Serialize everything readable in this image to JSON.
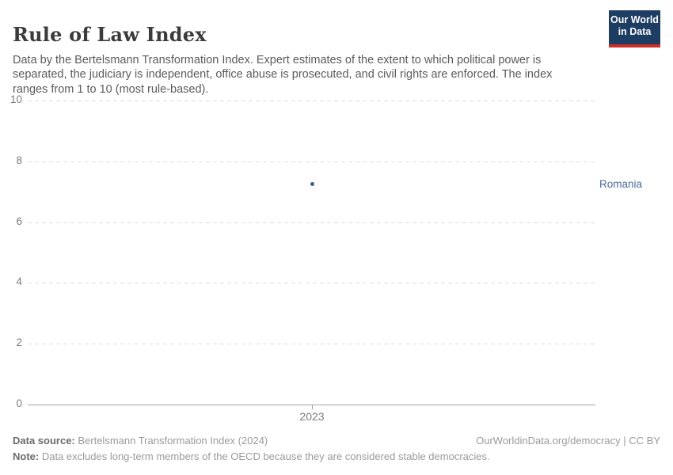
{
  "header": {
    "title": "Rule of Law Index",
    "subtitle": "Data by the Bertelsmann Transformation Index. Expert estimates of the extent to which political power is separated, the judiciary is independent, office abuse is prosecuted, and civil rights are enforced. The index ranges from 1 to 10 (most rule-based).",
    "logo": {
      "line1": "Our World",
      "line2": "in Data",
      "bg_color": "#1d3d63",
      "accent_color": "#cf2e27"
    }
  },
  "chart_data": {
    "type": "scatter",
    "title": "Rule of Law Index",
    "x": [
      2023
    ],
    "xticks": [
      "2023"
    ],
    "series": [
      {
        "name": "Romania",
        "values": [
          7.25
        ],
        "color": "#3d5a8f"
      }
    ],
    "entity_label": "Romania",
    "entity_label_color": "#4c6a9c",
    "ylim": [
      0,
      10
    ],
    "yticks": [
      0,
      2,
      4,
      6,
      8,
      10
    ],
    "xlabel": "",
    "ylabel": "",
    "grid": "horizontal-dashed",
    "legend_position": "right-of-point",
    "gridline_color": "#dcdcdc",
    "zero_line_color": "#a5a5a5"
  },
  "footer": {
    "datasource_label": "Data source:",
    "datasource_value": " Bertelsmann Transformation Index (2024)",
    "rights": "OurWorldinData.org/democracy | CC BY",
    "note_label": "Note:",
    "note_value": " Data excludes long-term members of the OECD because they are considered stable democracies."
  }
}
